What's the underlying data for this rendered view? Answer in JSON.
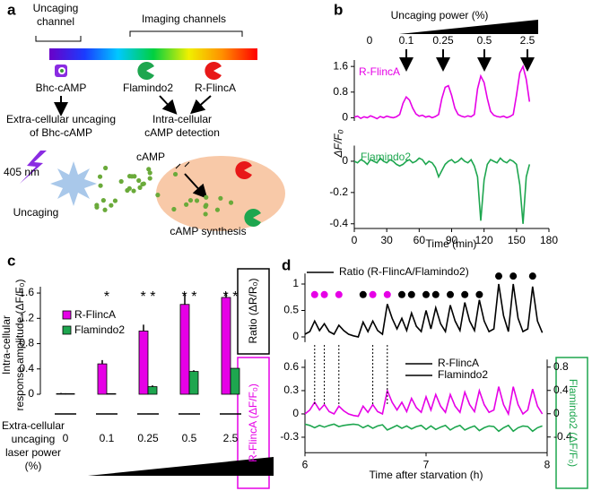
{
  "panel_labels": [
    "a",
    "b",
    "c",
    "d"
  ],
  "diagram": {
    "uncaging_channel": [
      "Uncaging",
      "channel"
    ],
    "imaging_channels": "Imaging channels",
    "probes": [
      "Bhc-cAMP",
      "Flamindo2",
      "R-FlincA"
    ],
    "uncaging_text": [
      "Extra-cellular uncaging",
      "of Bhc-cAMP"
    ],
    "detection_text": [
      "Intra-cellular",
      "cAMP detection"
    ],
    "laser": "405 nm",
    "camp": "cAMP",
    "uncaging": "Uncaging",
    "synthesis": "cAMP synthesis"
  },
  "chart_data": [
    {
      "type": "line",
      "title": "Uncaging power (%)",
      "uncaging_powers": [
        "0",
        "0.1",
        "0.25",
        "0.5",
        "2.5"
      ],
      "xlim": [
        0,
        180
      ],
      "ylim": [
        -0.1,
        1.8
      ],
      "yticks": [
        0,
        0.8,
        1.6
      ],
      "x": [
        0,
        3,
        6,
        9,
        12,
        15,
        18,
        21,
        24,
        27,
        30,
        33,
        36,
        39,
        42,
        45,
        48,
        51,
        54,
        57,
        60,
        63,
        66,
        69,
        72,
        75,
        78,
        81,
        84,
        87,
        90,
        93,
        96,
        99,
        102,
        105,
        108,
        111,
        114,
        117,
        120,
        123,
        126,
        129,
        132,
        135,
        138,
        141,
        144,
        147,
        150,
        153,
        156,
        159,
        162
      ],
      "series": [
        {
          "name": "R-FlincA",
          "color": "#e600e6",
          "values": [
            0.02,
            0.05,
            -0.02,
            0.03,
            0.0,
            0.06,
            0.02,
            -0.03,
            0.04,
            0.0,
            0.05,
            0.02,
            0.0,
            0.03,
            0.1,
            0.45,
            0.65,
            0.55,
            0.3,
            0.12,
            0.05,
            0.08,
            0.02,
            0.05,
            0.0,
            0.04,
            0.1,
            0.6,
            0.95,
            1.0,
            0.7,
            0.3,
            0.1,
            0.05,
            0.02,
            0.06,
            0.03,
            0.1,
            0.9,
            1.3,
            1.1,
            0.6,
            0.2,
            0.08,
            0.04,
            0.02,
            0.05,
            0.0,
            0.04,
            0.1,
            0.7,
            1.4,
            1.6,
            1.2,
            0.5
          ]
        }
      ]
    },
    {
      "type": "line",
      "xlabel": "Time (min)",
      "ylabel": "ΔF/F₀",
      "xlim": [
        0,
        180
      ],
      "xticks": [
        0,
        30,
        60,
        90,
        120,
        150,
        180
      ],
      "ylim": [
        -0.43,
        0.1
      ],
      "yticks": [
        0,
        -0.2,
        -0.4
      ],
      "x": [
        0,
        3,
        6,
        9,
        12,
        15,
        18,
        21,
        24,
        27,
        30,
        33,
        36,
        39,
        42,
        45,
        48,
        51,
        54,
        57,
        60,
        63,
        66,
        69,
        72,
        75,
        78,
        81,
        84,
        87,
        90,
        93,
        96,
        99,
        102,
        105,
        108,
        111,
        114,
        117,
        120,
        123,
        126,
        129,
        132,
        135,
        138,
        141,
        144,
        147,
        150,
        153,
        156,
        159,
        162
      ],
      "series": [
        {
          "name": "Flamindo2",
          "color": "#1ea64f",
          "values": [
            0.0,
            -0.01,
            0.01,
            0.0,
            -0.02,
            0.01,
            0.0,
            -0.01,
            0.02,
            0.0,
            -0.01,
            0.01,
            0.0,
            -0.02,
            -0.03,
            -0.02,
            0.0,
            0.01,
            -0.01,
            0.0,
            0.02,
            0.01,
            -0.02,
            0.0,
            -0.01,
            -0.04,
            -0.1,
            -0.06,
            -0.02,
            0.0,
            0.01,
            -0.01,
            0.0,
            0.02,
            0.0,
            -0.01,
            0.01,
            -0.03,
            -0.1,
            -0.38,
            -0.12,
            -0.02,
            0.01,
            0.0,
            -0.01,
            0.02,
            0.0,
            -0.01,
            0.01,
            0.0,
            -0.02,
            -0.15,
            -0.4,
            -0.1,
            -0.02
          ]
        }
      ]
    },
    {
      "type": "bar",
      "ylabel": [
        "Intra-cellular",
        "response amplitude (ΔF/F₀)"
      ],
      "xlabel": [
        "Extra-cellular",
        "uncaging",
        "laser power",
        "(%)"
      ],
      "categories": [
        "0",
        "0.1",
        "0.25",
        "0.5",
        "2.5"
      ],
      "ylim": [
        0,
        1.7
      ],
      "yticks": [
        0,
        0.4,
        0.8,
        1.2,
        1.6
      ],
      "significance": [
        null,
        "*",
        "* *",
        "* *",
        "* *"
      ],
      "series": [
        {
          "name": "R-FlincA",
          "color": "#e600e6",
          "values": [
            0.01,
            0.48,
            1.0,
            1.42,
            1.53
          ],
          "errors": [
            0.01,
            0.06,
            0.1,
            0.18,
            0.08
          ]
        },
        {
          "name": "Flamindo2",
          "color": "#1ea64f",
          "values": [
            0.01,
            0.01,
            0.12,
            0.36,
            0.41
          ],
          "errors": [
            0.0,
            0.0,
            0.02,
            0.02,
            0.0
          ]
        }
      ]
    },
    {
      "type": "line",
      "ylabel": "Ratio (ΔR/R₀)",
      "xlim": [
        6,
        8
      ],
      "ylim": [
        -0.1,
        1.2
      ],
      "yticks": [
        0,
        0.5,
        1
      ],
      "x": [
        6,
        6.04,
        6.08,
        6.12,
        6.16,
        6.2,
        6.24,
        6.28,
        6.32,
        6.36,
        6.4,
        6.44,
        6.48,
        6.52,
        6.56,
        6.6,
        6.64,
        6.68,
        6.72,
        6.76,
        6.8,
        6.84,
        6.88,
        6.92,
        6.96,
        7,
        7.04,
        7.08,
        7.12,
        7.16,
        7.2,
        7.24,
        7.28,
        7.32,
        7.36,
        7.4,
        7.44,
        7.48,
        7.52,
        7.56,
        7.6,
        7.64,
        7.68,
        7.72,
        7.76,
        7.8,
        7.84,
        7.88,
        7.92,
        7.96
      ],
      "series": [
        {
          "name": "Ratio (R-FlincA/Flamindo2)",
          "color": "#000000",
          "values": [
            0.05,
            0.1,
            0.3,
            0.12,
            0.25,
            0.1,
            0.05,
            0.22,
            0.12,
            0.05,
            0.02,
            0.0,
            0.28,
            0.1,
            0.3,
            0.12,
            0.05,
            0.62,
            0.35,
            0.15,
            0.35,
            0.12,
            0.45,
            0.2,
            0.1,
            0.5,
            0.15,
            0.55,
            0.25,
            0.1,
            0.6,
            0.3,
            0.12,
            0.65,
            0.3,
            0.12,
            0.7,
            0.3,
            0.1,
            0.15,
            1.0,
            0.4,
            0.1,
            1.0,
            0.35,
            0.1,
            0.15,
            0.95,
            0.3,
            0.08
          ]
        }
      ],
      "markers": [
        {
          "color": "#e600e6",
          "y": 0.8,
          "x": [
            6.08,
            6.16,
            6.28,
            6.56,
            6.68
          ]
        },
        {
          "color": "#000000",
          "y": 0.8,
          "x": [
            6.48,
            6.8,
            6.88,
            7.0,
            7.08,
            7.2,
            7.32,
            7.44
          ]
        },
        {
          "color": "#000000",
          "y": 1.15,
          "x": [
            7.6,
            7.72,
            7.88
          ]
        }
      ]
    },
    {
      "type": "line",
      "xlabel": "Time after starvation (h)",
      "ylabel": "R-FlincA (ΔF/F₀)",
      "y2label": "Flamindo2 (ΔF/F₀)",
      "xlim": [
        6,
        8
      ],
      "xticks": [
        6,
        7,
        8
      ],
      "ylim": [
        -0.5,
        0.7
      ],
      "yticks": [
        0.6,
        0.3,
        0,
        -0.3
      ],
      "y2lim": [
        -0.67,
        0.93
      ],
      "y2ticks": [
        0.8,
        0.4,
        0,
        -0.4
      ],
      "x": [
        6,
        6.04,
        6.08,
        6.12,
        6.16,
        6.2,
        6.24,
        6.28,
        6.32,
        6.36,
        6.4,
        6.44,
        6.48,
        6.52,
        6.56,
        6.6,
        6.64,
        6.68,
        6.72,
        6.76,
        6.8,
        6.84,
        6.88,
        6.92,
        6.96,
        7,
        7.04,
        7.08,
        7.12,
        7.16,
        7.2,
        7.24,
        7.28,
        7.32,
        7.36,
        7.4,
        7.44,
        7.48,
        7.52,
        7.56,
        7.6,
        7.64,
        7.68,
        7.72,
        7.76,
        7.8,
        7.84,
        7.88,
        7.92,
        7.96
      ],
      "series": [
        {
          "name": "R-FlincA",
          "color": "#e600e6",
          "values": [
            0.0,
            0.05,
            0.15,
            0.05,
            0.12,
            0.03,
            0.0,
            0.1,
            0.04,
            0.0,
            -0.02,
            -0.03,
            0.1,
            0.02,
            0.12,
            0.03,
            0.0,
            0.3,
            0.15,
            0.05,
            0.15,
            0.03,
            0.2,
            0.08,
            0.02,
            0.22,
            0.05,
            0.25,
            0.1,
            0.02,
            0.25,
            0.1,
            0.02,
            0.28,
            0.12,
            0.03,
            0.3,
            0.12,
            0.02,
            0.05,
            0.35,
            0.12,
            0.0,
            0.35,
            0.12,
            0.0,
            0.05,
            0.32,
            0.1,
            0.0
          ]
        },
        {
          "name": "Flamindo2",
          "color": "#1ea64f",
          "axis": "y2",
          "values": [
            -0.18,
            -0.2,
            -0.24,
            -0.2,
            -0.23,
            -0.2,
            -0.18,
            -0.22,
            -0.2,
            -0.19,
            -0.18,
            -0.19,
            -0.24,
            -0.2,
            -0.25,
            -0.21,
            -0.19,
            -0.28,
            -0.24,
            -0.2,
            -0.25,
            -0.21,
            -0.26,
            -0.22,
            -0.2,
            -0.27,
            -0.21,
            -0.27,
            -0.23,
            -0.2,
            -0.28,
            -0.23,
            -0.2,
            -0.28,
            -0.24,
            -0.21,
            -0.29,
            -0.24,
            -0.21,
            -0.22,
            -0.3,
            -0.24,
            -0.2,
            -0.3,
            -0.24,
            -0.21,
            -0.22,
            -0.3,
            -0.24,
            -0.21
          ]
        }
      ]
    }
  ]
}
